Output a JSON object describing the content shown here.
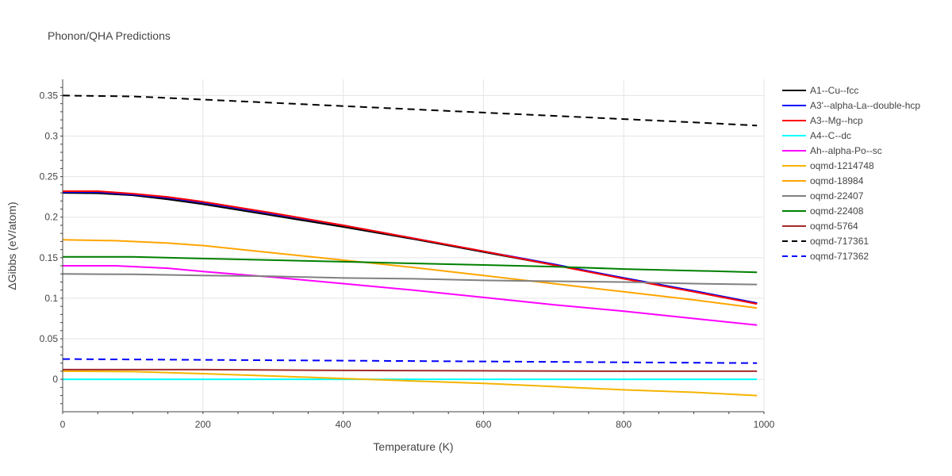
{
  "chart_data": {
    "type": "line",
    "title": "Phonon/QHA Predictions",
    "xlabel": "Temperature (K)",
    "ylabel": "ΔGibbs (eV/atom)",
    "xlim": [
      0,
      1000
    ],
    "ylim": [
      -0.04,
      0.37
    ],
    "x_ticks": [
      0,
      200,
      400,
      600,
      800,
      1000
    ],
    "y_ticks": [
      0,
      0.05,
      0.1,
      0.15,
      0.2,
      0.25,
      0.3,
      0.35
    ],
    "grid": true,
    "legend_position": "right",
    "series": [
      {
        "name": "A1--Cu--fcc",
        "color": "#000000",
        "dash": "solid",
        "points": [
          [
            0,
            0.23
          ],
          [
            50,
            0.2295
          ],
          [
            100,
            0.227
          ],
          [
            150,
            0.222
          ],
          [
            200,
            0.216
          ],
          [
            300,
            0.202
          ],
          [
            400,
            0.188
          ],
          [
            500,
            0.173
          ],
          [
            600,
            0.157
          ],
          [
            700,
            0.141
          ],
          [
            800,
            0.125
          ],
          [
            900,
            0.109
          ],
          [
            990,
            0.094
          ]
        ]
      },
      {
        "name": "A3'--alpha-La--double-hcp",
        "color": "#0000ff",
        "dash": "solid",
        "points": [
          [
            0,
            0.231
          ],
          [
            50,
            0.231
          ],
          [
            100,
            0.228
          ],
          [
            150,
            0.224
          ],
          [
            200,
            0.218
          ],
          [
            300,
            0.204
          ],
          [
            400,
            0.19
          ],
          [
            500,
            0.174
          ],
          [
            600,
            0.158
          ],
          [
            700,
            0.142
          ],
          [
            800,
            0.125
          ],
          [
            900,
            0.109
          ],
          [
            990,
            0.094
          ]
        ]
      },
      {
        "name": "A3--Mg--hcp",
        "color": "#ff0000",
        "dash": "solid",
        "points": [
          [
            0,
            0.232
          ],
          [
            50,
            0.232
          ],
          [
            100,
            0.229
          ],
          [
            150,
            0.225
          ],
          [
            200,
            0.219
          ],
          [
            300,
            0.205
          ],
          [
            400,
            0.19
          ],
          [
            500,
            0.174
          ],
          [
            600,
            0.158
          ],
          [
            700,
            0.141
          ],
          [
            800,
            0.124
          ],
          [
            900,
            0.108
          ],
          [
            990,
            0.093
          ]
        ]
      },
      {
        "name": "A4--C--dc",
        "color": "#00ffff",
        "dash": "solid",
        "points": [
          [
            0,
            0
          ],
          [
            200,
            0
          ],
          [
            400,
            0
          ],
          [
            600,
            0
          ],
          [
            800,
            0
          ],
          [
            990,
            0
          ]
        ]
      },
      {
        "name": "Ah--alpha-Po--sc",
        "color": "#ff00ff",
        "dash": "solid",
        "points": [
          [
            0,
            0.14
          ],
          [
            75,
            0.14
          ],
          [
            150,
            0.137
          ],
          [
            200,
            0.133
          ],
          [
            300,
            0.126
          ],
          [
            400,
            0.118
          ],
          [
            500,
            0.11
          ],
          [
            600,
            0.101
          ],
          [
            700,
            0.092
          ],
          [
            800,
            0.084
          ],
          [
            900,
            0.075
          ],
          [
            990,
            0.067
          ]
        ]
      },
      {
        "name": "oqmd-1214748",
        "color": "#f4b400",
        "dash": "solid",
        "points": [
          [
            0,
            0.01
          ],
          [
            100,
            0.0095
          ],
          [
            200,
            0.007
          ],
          [
            300,
            0.004
          ],
          [
            400,
            0.001
          ],
          [
            500,
            -0.002
          ],
          [
            600,
            -0.005
          ],
          [
            700,
            -0.009
          ],
          [
            800,
            -0.013
          ],
          [
            900,
            -0.016
          ],
          [
            990,
            -0.02
          ]
        ]
      },
      {
        "name": "oqmd-18984",
        "color": "#ffa500",
        "dash": "solid",
        "points": [
          [
            0,
            0.172
          ],
          [
            75,
            0.171
          ],
          [
            150,
            0.168
          ],
          [
            200,
            0.165
          ],
          [
            300,
            0.156
          ],
          [
            400,
            0.147
          ],
          [
            500,
            0.138
          ],
          [
            600,
            0.128
          ],
          [
            700,
            0.118
          ],
          [
            800,
            0.108
          ],
          [
            900,
            0.098
          ],
          [
            990,
            0.088
          ]
        ]
      },
      {
        "name": "oqmd-22407",
        "color": "#808080",
        "dash": "solid",
        "points": [
          [
            0,
            0.13
          ],
          [
            100,
            0.1295
          ],
          [
            200,
            0.128
          ],
          [
            300,
            0.127
          ],
          [
            400,
            0.125
          ],
          [
            500,
            0.124
          ],
          [
            600,
            0.122
          ],
          [
            700,
            0.121
          ],
          [
            800,
            0.12
          ],
          [
            900,
            0.118
          ],
          [
            990,
            0.117
          ]
        ]
      },
      {
        "name": "oqmd-22408",
        "color": "#008000",
        "dash": "solid",
        "points": [
          [
            0,
            0.151
          ],
          [
            100,
            0.151
          ],
          [
            200,
            0.149
          ],
          [
            300,
            0.147
          ],
          [
            400,
            0.145
          ],
          [
            500,
            0.143
          ],
          [
            600,
            0.141
          ],
          [
            700,
            0.139
          ],
          [
            800,
            0.136
          ],
          [
            900,
            0.134
          ],
          [
            990,
            0.132
          ]
        ]
      },
      {
        "name": "oqmd-5764",
        "color": "#a52a2a",
        "dash": "solid",
        "points": [
          [
            0,
            0.012
          ],
          [
            200,
            0.012
          ],
          [
            400,
            0.011
          ],
          [
            600,
            0.0105
          ],
          [
            800,
            0.01
          ],
          [
            990,
            0.01
          ]
        ]
      },
      {
        "name": "oqmd-717361",
        "color": "#000000",
        "dash": "dash",
        "points": [
          [
            0,
            0.35
          ],
          [
            100,
            0.349
          ],
          [
            200,
            0.345
          ],
          [
            300,
            0.341
          ],
          [
            400,
            0.337
          ],
          [
            500,
            0.333
          ],
          [
            600,
            0.329
          ],
          [
            700,
            0.325
          ],
          [
            800,
            0.321
          ],
          [
            900,
            0.317
          ],
          [
            990,
            0.313
          ]
        ]
      },
      {
        "name": "oqmd-717362",
        "color": "#0000ff",
        "dash": "dash",
        "points": [
          [
            0,
            0.025
          ],
          [
            200,
            0.024
          ],
          [
            400,
            0.023
          ],
          [
            600,
            0.022
          ],
          [
            800,
            0.021
          ],
          [
            990,
            0.02
          ]
        ]
      }
    ]
  }
}
